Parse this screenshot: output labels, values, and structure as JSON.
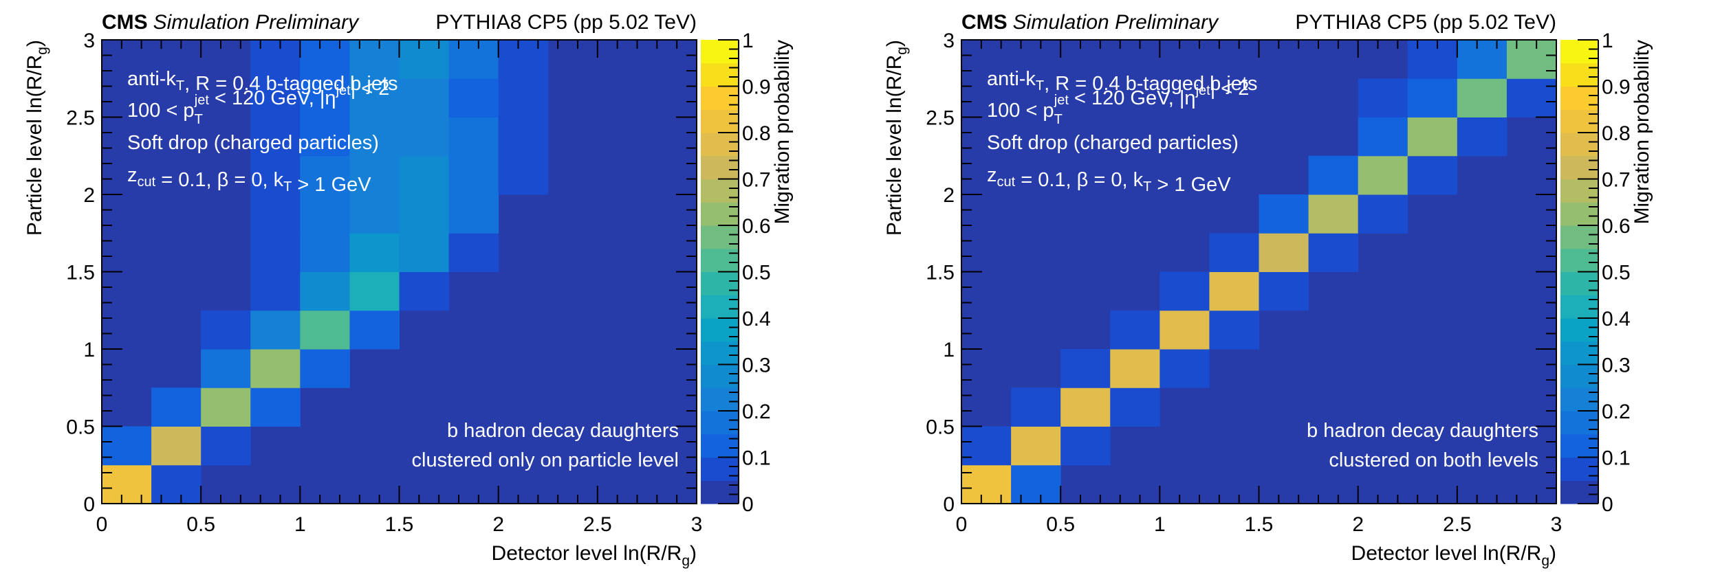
{
  "chart_data": [
    {
      "type": "heatmap",
      "header_left_bold": "CMS",
      "header_left_italic": "Simulation Preliminary",
      "header_right": "PYTHIA8 CP5 (pp 5.02 TeV)",
      "xlabel": "Detector level ln(R/R_g)",
      "xlabel_main": "Detector level ln(R/R",
      "xlabel_sub": "g",
      "xlabel_tail": ")",
      "ylabel_main": "Particle level ln(R/R",
      "ylabel_sub": "g",
      "ylabel_tail": ")",
      "zlabel": "Migration probability",
      "xlim": [
        0,
        3
      ],
      "ylim": [
        0,
        3
      ],
      "zlim": [
        0,
        1
      ],
      "x_ticks": [
        "0",
        "0.5",
        "1",
        "1.5",
        "2",
        "2.5",
        "3"
      ],
      "y_ticks": [
        "0",
        "0.5",
        "1",
        "1.5",
        "2",
        "2.5",
        "3"
      ],
      "z_ticks": [
        "0",
        "0.1",
        "0.2",
        "0.3",
        "0.4",
        "0.5",
        "0.6",
        "0.7",
        "0.8",
        "0.9",
        "1"
      ],
      "bin_width": 0.25,
      "annotations": [
        {
          "parts": [
            [
              "anti-k",
              ""
            ],
            [
              "T",
              "sub"
            ],
            [
              ", R = 0.4 b-tagged b jets",
              ""
            ]
          ]
        },
        {
          "parts": [
            [
              "100 < p",
              ""
            ],
            [
              "T",
              "subsup",
              "jet"
            ],
            [
              " < 120 GeV, |η",
              ""
            ],
            [
              "jet",
              "sup"
            ],
            [
              "| < 2",
              ""
            ]
          ]
        },
        {
          "parts": [
            [
              "Soft drop (charged particles)",
              ""
            ]
          ]
        },
        {
          "parts": [
            [
              "z",
              ""
            ],
            [
              "cut",
              "sub"
            ],
            [
              " = 0.1, β = 0, k",
              ""
            ],
            [
              "T",
              "sub"
            ],
            [
              " > 1 GeV",
              ""
            ]
          ]
        }
      ],
      "note_lines": [
        "b hadron decay daughters",
        "clustered only on particle level"
      ],
      "z_values_rows_bottom_to_top": [
        [
          0.82,
          0.07,
          0,
          0,
          0,
          0,
          0,
          0,
          0,
          0,
          0,
          0
        ],
        [
          0.12,
          0.72,
          0.07,
          0,
          0,
          0,
          0,
          0,
          0,
          0,
          0,
          0
        ],
        [
          0,
          0.12,
          0.62,
          0.12,
          0,
          0,
          0,
          0,
          0,
          0,
          0,
          0
        ],
        [
          0,
          0,
          0.17,
          0.62,
          0.12,
          0,
          0,
          0,
          0,
          0,
          0,
          0
        ],
        [
          0,
          0,
          0.07,
          0.22,
          0.52,
          0.12,
          0,
          0,
          0,
          0,
          0,
          0
        ],
        [
          0,
          0,
          0,
          0.07,
          0.27,
          0.42,
          0.07,
          0,
          0,
          0,
          0,
          0
        ],
        [
          0,
          0,
          0,
          0.07,
          0.17,
          0.32,
          0.27,
          0.07,
          0,
          0,
          0,
          0
        ],
        [
          0,
          0,
          0,
          0.07,
          0.17,
          0.22,
          0.27,
          0.17,
          0,
          0,
          0,
          0
        ],
        [
          0,
          0,
          0,
          0.07,
          0.17,
          0.2,
          0.27,
          0.17,
          0.07,
          0,
          0,
          0
        ],
        [
          0,
          0,
          0,
          0.07,
          0.12,
          0.2,
          0.22,
          0.17,
          0.07,
          0,
          0,
          0
        ],
        [
          0,
          0,
          0,
          0.07,
          0.12,
          0.2,
          0.22,
          0.12,
          0.07,
          0,
          0,
          0
        ],
        [
          0,
          0,
          0,
          0.07,
          0.12,
          0.2,
          0.27,
          0.17,
          0.07,
          0,
          0,
          0
        ]
      ]
    },
    {
      "type": "heatmap",
      "header_left_bold": "CMS",
      "header_left_italic": "Simulation Preliminary",
      "header_right": "PYTHIA8 CP5 (pp 5.02 TeV)",
      "xlabel": "Detector level ln(R/R_g)",
      "xlabel_main": "Detector level ln(R/R",
      "xlabel_sub": "g",
      "xlabel_tail": ")",
      "ylabel_main": "Particle level ln(R/R",
      "ylabel_sub": "g",
      "ylabel_tail": ")",
      "zlabel": "Migration probability",
      "xlim": [
        0,
        3
      ],
      "ylim": [
        0,
        3
      ],
      "zlim": [
        0,
        1
      ],
      "x_ticks": [
        "0",
        "0.5",
        "1",
        "1.5",
        "2",
        "2.5",
        "3"
      ],
      "y_ticks": [
        "0",
        "0.5",
        "1",
        "1.5",
        "2",
        "2.5",
        "3"
      ],
      "z_ticks": [
        "0",
        "0.1",
        "0.2",
        "0.3",
        "0.4",
        "0.5",
        "0.6",
        "0.7",
        "0.8",
        "0.9",
        "1"
      ],
      "bin_width": 0.25,
      "annotations": [
        {
          "parts": [
            [
              "anti-k",
              ""
            ],
            [
              "T",
              "sub"
            ],
            [
              ", R = 0.4 b-tagged b jets",
              ""
            ]
          ]
        },
        {
          "parts": [
            [
              "100 < p",
              ""
            ],
            [
              "T",
              "subsup",
              "jet"
            ],
            [
              " < 120 GeV, |η",
              ""
            ],
            [
              "jet",
              "sup"
            ],
            [
              "| < 2",
              ""
            ]
          ]
        },
        {
          "parts": [
            [
              "Soft drop (charged particles)",
              ""
            ]
          ]
        },
        {
          "parts": [
            [
              "z",
              ""
            ],
            [
              "cut",
              "sub"
            ],
            [
              " = 0.1, β = 0, k",
              ""
            ],
            [
              "T",
              "sub"
            ],
            [
              " > 1 GeV",
              ""
            ]
          ]
        }
      ],
      "note_lines": [
        "b hadron decay daughters",
        "clustered on both levels"
      ],
      "z_values_rows_bottom_to_top": [
        [
          0.82,
          0.12,
          0,
          0,
          0,
          0,
          0,
          0,
          0,
          0,
          0,
          0
        ],
        [
          0.07,
          0.77,
          0.07,
          0,
          0,
          0,
          0,
          0,
          0,
          0,
          0,
          0
        ],
        [
          0,
          0.07,
          0.77,
          0.07,
          0,
          0,
          0,
          0,
          0,
          0,
          0,
          0
        ],
        [
          0,
          0,
          0.07,
          0.77,
          0.07,
          0,
          0,
          0,
          0,
          0,
          0,
          0
        ],
        [
          0,
          0,
          0,
          0.07,
          0.77,
          0.07,
          0,
          0,
          0,
          0,
          0,
          0
        ],
        [
          0,
          0,
          0,
          0,
          0.07,
          0.77,
          0.07,
          0,
          0,
          0,
          0,
          0
        ],
        [
          0,
          0,
          0,
          0,
          0,
          0.07,
          0.72,
          0.07,
          0,
          0,
          0,
          0
        ],
        [
          0,
          0,
          0,
          0,
          0,
          0,
          0.12,
          0.67,
          0.07,
          0,
          0,
          0
        ],
        [
          0,
          0,
          0,
          0,
          0,
          0,
          0,
          0.12,
          0.62,
          0.07,
          0,
          0
        ],
        [
          0,
          0,
          0,
          0,
          0,
          0,
          0,
          0,
          0.12,
          0.62,
          0.07,
          0
        ],
        [
          0,
          0,
          0,
          0,
          0,
          0,
          0,
          0,
          0.07,
          0.12,
          0.57,
          0.07
        ],
        [
          0,
          0,
          0,
          0,
          0,
          0,
          0,
          0,
          0,
          0.07,
          0.17,
          0.57
        ]
      ]
    }
  ],
  "palette": [
    "#273ca8",
    "#1a4ccf",
    "#1463de",
    "#1473da",
    "#1580d5",
    "#118bcf",
    "#0c96cb",
    "#0aa3c6",
    "#1caeb9",
    "#2db6a8",
    "#4fbb93",
    "#71bd81",
    "#96be6f",
    "#b3bd64",
    "#cdb95b",
    "#e0bd4d",
    "#f0c33e",
    "#fccb2f",
    "#f9de1c",
    "#f8f513"
  ]
}
